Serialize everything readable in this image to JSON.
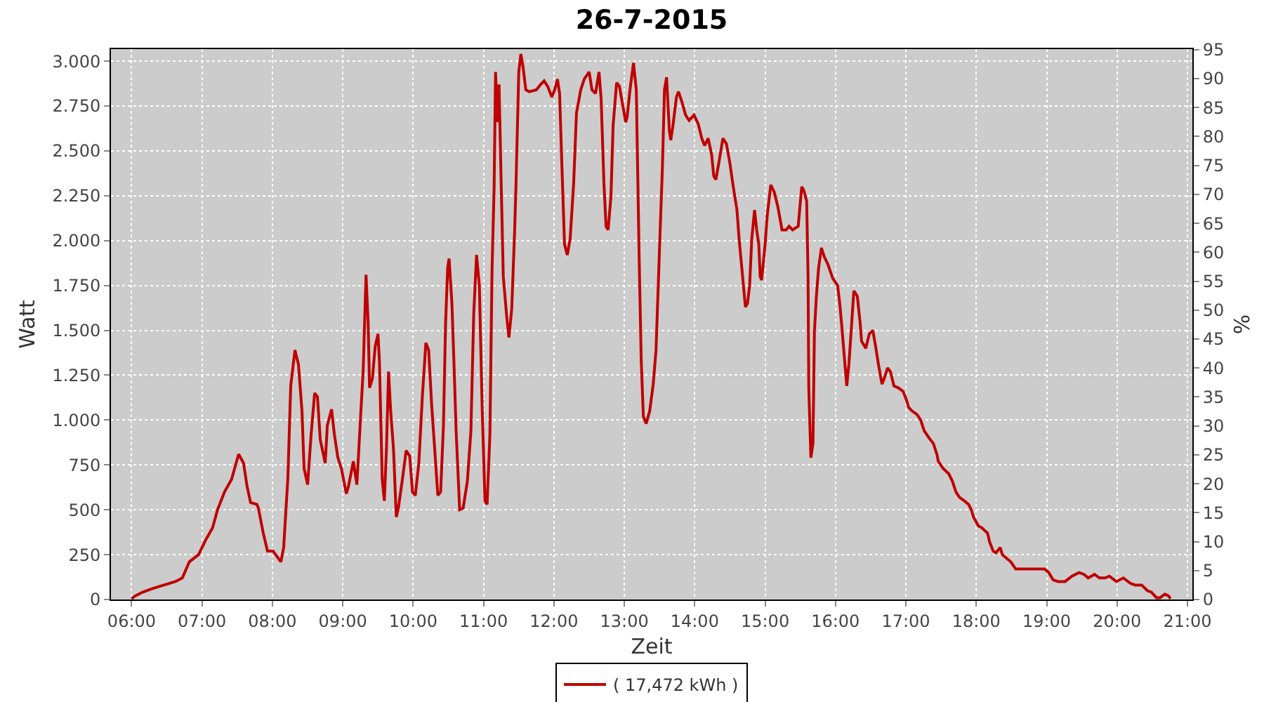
{
  "chart_data": {
    "type": "line",
    "title": "26-7-2015",
    "xlabel": "Zeit",
    "ylabel": "Watt",
    "y2label": "%",
    "x": [
      6.0,
      6.05,
      6.15,
      6.29,
      6.45,
      6.62,
      6.72,
      6.82,
      6.95,
      7.05,
      7.15,
      7.22,
      7.32,
      7.42,
      7.52,
      7.59,
      7.64,
      7.69,
      7.78,
      7.8,
      7.87,
      7.93,
      8.01,
      8.12,
      8.16,
      8.22,
      8.26,
      8.32,
      8.37,
      8.42,
      8.45,
      8.5,
      8.55,
      8.6,
      8.64,
      8.68,
      8.75,
      8.78,
      8.84,
      8.88,
      8.93,
      8.98,
      9.05,
      9.08,
      9.15,
      9.2,
      9.25,
      9.29,
      9.33,
      9.36,
      9.38,
      9.42,
      9.46,
      9.5,
      9.52,
      9.56,
      9.59,
      9.62,
      9.65,
      9.68,
      9.72,
      9.76,
      9.79,
      9.85,
      9.9,
      9.95,
      9.99,
      10.03,
      10.08,
      10.13,
      10.18,
      10.22,
      10.26,
      10.3,
      10.35,
      10.39,
      10.43,
      10.46,
      10.49,
      10.51,
      10.55,
      10.58,
      10.61,
      10.66,
      10.71,
      10.77,
      10.82,
      10.86,
      10.9,
      10.94,
      10.98,
      11.02,
      11.05,
      11.09,
      11.12,
      11.15,
      11.17,
      11.2,
      11.22,
      11.25,
      11.28,
      11.33,
      11.36,
      11.4,
      11.44,
      11.46,
      11.5,
      11.53,
      11.56,
      11.6,
      11.65,
      11.75,
      11.81,
      11.86,
      11.91,
      11.97,
      12.01,
      12.05,
      12.08,
      12.11,
      12.15,
      12.19,
      12.23,
      12.28,
      12.32,
      12.38,
      12.43,
      12.5,
      12.54,
      12.59,
      12.64,
      12.67,
      12.71,
      12.74,
      12.77,
      12.81,
      12.84,
      12.89,
      12.93,
      12.97,
      13.02,
      13.04,
      13.08,
      13.13,
      13.17,
      13.21,
      13.24,
      13.27,
      13.31,
      13.36,
      13.41,
      13.45,
      13.5,
      13.54,
      13.57,
      13.6,
      13.64,
      13.66,
      13.69,
      13.74,
      13.77,
      13.82,
      13.87,
      13.92,
      13.99,
      14.05,
      14.1,
      14.14,
      14.19,
      14.24,
      14.27,
      14.3,
      14.35,
      14.4,
      14.45,
      14.5,
      14.54,
      14.6,
      14.63,
      14.68,
      14.72,
      14.75,
      14.78,
      14.81,
      14.85,
      14.88,
      14.91,
      14.93,
      14.95,
      15.0,
      15.03,
      15.08,
      15.13,
      15.18,
      15.24,
      15.3,
      15.34,
      15.39,
      15.47,
      15.52,
      15.55,
      15.59,
      15.61,
      15.62,
      15.65,
      15.68,
      15.7,
      15.73,
      15.76,
      15.8,
      15.84,
      15.89,
      15.96,
      16.03,
      16.06,
      16.09,
      16.13,
      16.16,
      16.19,
      16.23,
      16.26,
      16.31,
      16.35,
      16.37,
      16.43,
      16.48,
      16.53,
      16.57,
      16.61,
      16.66,
      16.69,
      16.74,
      16.78,
      16.83,
      16.89,
      16.96,
      17.01,
      17.04,
      17.09,
      17.16,
      17.21,
      17.26,
      17.33,
      17.39,
      17.44,
      17.46,
      17.53,
      17.61,
      17.66,
      17.71,
      17.76,
      17.83,
      17.89,
      17.93,
      17.96,
      18.03,
      18.08,
      18.13,
      18.16,
      18.19,
      18.24,
      18.28,
      18.34,
      18.37,
      18.43,
      18.49,
      18.56,
      18.69,
      18.83,
      18.97,
      19.03,
      19.09,
      19.16,
      19.26,
      19.36,
      19.46,
      19.53,
      19.59,
      19.68,
      19.75,
      19.83,
      19.89,
      19.99,
      20.09,
      20.19,
      20.26,
      20.35,
      20.43,
      20.49,
      20.56,
      20.61,
      20.68,
      20.73,
      20.76
    ],
    "series": [
      {
        "name": "( 17,472 kWh )",
        "color": "#c00000",
        "values": [
          5,
          20,
          40,
          60,
          80,
          100,
          120,
          210,
          250,
          330,
          400,
          500,
          600,
          670,
          810,
          760,
          630,
          540,
          530,
          510,
          370,
          270,
          270,
          210,
          290,
          680,
          1190,
          1390,
          1310,
          1050,
          730,
          640,
          920,
          1150,
          1130,
          890,
          760,
          970,
          1060,
          920,
          790,
          730,
          590,
          630,
          770,
          640,
          1000,
          1280,
          1810,
          1540,
          1180,
          1230,
          1410,
          1480,
          1330,
          670,
          550,
          840,
          1270,
          1050,
          840,
          460,
          510,
          680,
          830,
          800,
          600,
          580,
          760,
          1130,
          1430,
          1390,
          1100,
          870,
          580,
          600,
          970,
          1540,
          1850,
          1900,
          1650,
          1310,
          940,
          500,
          510,
          660,
          940,
          1590,
          1920,
          1750,
          1070,
          550,
          530,
          920,
          1830,
          2300,
          2940,
          2660,
          2870,
          2320,
          1800,
          1570,
          1460,
          1620,
          2040,
          2300,
          2940,
          3040,
          2970,
          2840,
          2830,
          2840,
          2870,
          2890,
          2860,
          2800,
          2840,
          2900,
          2820,
          2450,
          1980,
          1920,
          2010,
          2320,
          2710,
          2840,
          2900,
          2940,
          2840,
          2820,
          2940,
          2790,
          2320,
          2080,
          2060,
          2250,
          2640,
          2880,
          2860,
          2770,
          2660,
          2690,
          2840,
          2990,
          2840,
          1910,
          1330,
          1020,
          980,
          1050,
          1200,
          1390,
          1960,
          2400,
          2840,
          2910,
          2610,
          2560,
          2640,
          2800,
          2830,
          2770,
          2700,
          2670,
          2700,
          2650,
          2570,
          2530,
          2570,
          2480,
          2360,
          2340,
          2450,
          2570,
          2540,
          2430,
          2320,
          2170,
          2010,
          1800,
          1630,
          1650,
          1750,
          2010,
          2170,
          2060,
          1980,
          1800,
          1780,
          1980,
          2140,
          2310,
          2270,
          2190,
          2060,
          2060,
          2080,
          2060,
          2080,
          2300,
          2280,
          2220,
          1800,
          1180,
          790,
          870,
          1490,
          1700,
          1850,
          1960,
          1910,
          1870,
          1790,
          1750,
          1650,
          1520,
          1330,
          1190,
          1310,
          1540,
          1720,
          1690,
          1540,
          1440,
          1400,
          1480,
          1500,
          1410,
          1310,
          1200,
          1230,
          1290,
          1270,
          1190,
          1180,
          1160,
          1110,
          1070,
          1050,
          1030,
          1000,
          940,
          900,
          870,
          810,
          770,
          730,
          700,
          660,
          600,
          570,
          550,
          530,
          500,
          460,
          410,
          400,
          380,
          370,
          320,
          270,
          260,
          290,
          250,
          230,
          210,
          170,
          170,
          170,
          170,
          150,
          110,
          100,
          100,
          130,
          150,
          140,
          120,
          140,
          120,
          120,
          130,
          100,
          120,
          90,
          80,
          80,
          50,
          40,
          10,
          10,
          30,
          20,
          5
        ]
      }
    ],
    "xlim": [
      5.706,
      21.07
    ],
    "xticks": [
      {
        "value": 6,
        "label": "06:00"
      },
      {
        "value": 7,
        "label": "07:00"
      },
      {
        "value": 8,
        "label": "08:00"
      },
      {
        "value": 9,
        "label": "09:00"
      },
      {
        "value": 10,
        "label": "10:00"
      },
      {
        "value": 11,
        "label": "11:00"
      },
      {
        "value": 12,
        "label": "12:00"
      },
      {
        "value": 13,
        "label": "13:00"
      },
      {
        "value": 14,
        "label": "14:00"
      },
      {
        "value": 15,
        "label": "15:00"
      },
      {
        "value": 16,
        "label": "16:00"
      },
      {
        "value": 17,
        "label": "17:00"
      },
      {
        "value": 18,
        "label": "18:00"
      },
      {
        "value": 19,
        "label": "19:00"
      },
      {
        "value": 20,
        "label": "20:00"
      },
      {
        "value": 21,
        "label": "21:00"
      }
    ],
    "ylim": [
      0,
      3067
    ],
    "yticks": [
      {
        "value": 0,
        "label": "0"
      },
      {
        "value": 250,
        "label": "250"
      },
      {
        "value": 500,
        "label": "500"
      },
      {
        "value": 750,
        "label": "750"
      },
      {
        "value": 1000,
        "label": "1.000"
      },
      {
        "value": 1250,
        "label": "1.250"
      },
      {
        "value": 1500,
        "label": "1.500"
      },
      {
        "value": 1750,
        "label": "1.750"
      },
      {
        "value": 2000,
        "label": "2.000"
      },
      {
        "value": 2250,
        "label": "2.250"
      },
      {
        "value": 2500,
        "label": "2.500"
      },
      {
        "value": 2750,
        "label": "2.750"
      },
      {
        "value": 3000,
        "label": "3.000"
      }
    ],
    "y2lim": [
      0,
      95.1
    ],
    "y2ticks": [
      0,
      5,
      10,
      15,
      20,
      25,
      30,
      35,
      40,
      45,
      50,
      55,
      60,
      65,
      70,
      75,
      80,
      85,
      90,
      95
    ],
    "grid": true,
    "legend": "bottom",
    "line_style": "solid"
  }
}
